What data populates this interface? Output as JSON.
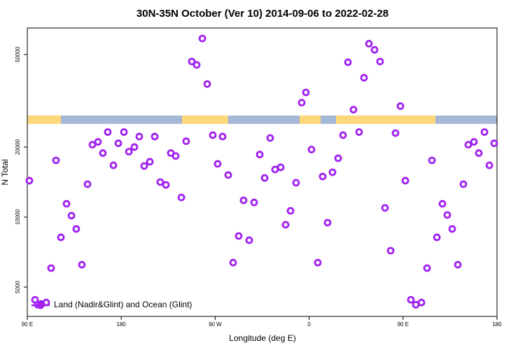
{
  "chart_data": {
    "type": "scatter",
    "title": "30N-35N October (Ver 10)   2014-09-06 to 2022-02-28",
    "x_label": "Longitude (deg E)",
    "y_label": "N Total",
    "log_y": true,
    "legend_position": "bottom-left",
    "xlim": [
      90,
      540
    ],
    "ylim": [
      3740,
      65000
    ],
    "xticks": [
      {
        "value": 90,
        "label": "90 E"
      },
      180,
      {
        "value": 270,
        "label": "90 W"
      },
      {
        "value": 360,
        "label": "0"
      },
      {
        "value": 450,
        "label": "90 E"
      },
      {
        "value": 540,
        "label": "180"
      }
    ],
    "yticks": [
      5000,
      10000,
      20000,
      50000
    ],
    "series": [
      {
        "name": "Land (Nadir&Glint) and Ocean (Glint)",
        "color": "#a020f0",
        "x": [
          92.0,
          97.4,
          100.1,
          103.4,
          108.1,
          112.8,
          117.5,
          122.2,
          127.6,
          132.3,
          136.9,
          142.3,
          147.7,
          152.4,
          157.7,
          162.4,
          167.1,
          172.5,
          177.2,
          182.6,
          187.3,
          192.6,
          197.3,
          202.0,
          207.4,
          212.1,
          217.4,
          222.8,
          227.5,
          232.2,
          237.6,
          242.2,
          247.6,
          252.3,
          257.7,
          262.4,
          267.7,
          272.4,
          277.1,
          282.5,
          287.2,
          292.5,
          297.2,
          302.6,
          307.3,
          312.7,
          317.4,
          322.7,
          327.4,
          332.8,
          337.5,
          342.2,
          347.5,
          352.9,
          356.9,
          362.3,
          368.3,
          373.0,
          377.7,
          382.4,
          387.8,
          392.5,
          397.2,
          402.5,
          407.9,
          412.6,
          417.3,
          422.7,
          428.0,
          432.7,
          438.1,
          442.8,
          447.5,
          452.2,
          457.5,
          462.2,
          467.6,
          473.0,
          477.7,
          482.4,
          487.7,
          492.4,
          497.1,
          502.5,
          507.8,
          512.5,
          517.9,
          522.6,
          528.0,
          532.7,
          537.3
        ],
        "values": [
          14340,
          4410,
          4200,
          4230,
          4290,
          6030,
          17530,
          8180,
          11410,
          10140,
          8890,
          6240,
          13850,
          20470,
          21050,
          18840,
          23200,
          16690,
          20760,
          23200,
          19110,
          20000,
          22190,
          16580,
          17290,
          22190,
          14140,
          13750,
          18840,
          18300,
          12140,
          21190,
          46650,
          45100,
          58590,
          37320,
          22500,
          16940,
          22190,
          15160,
          6370,
          8290,
          11800,
          7950,
          11560,
          18580,
          14730,
          21880,
          16020,
          16360,
          9270,
          10640,
          14050,
          31040,
          34350,
          19510,
          6370,
          14940,
          9460,
          15580,
          17900,
          22500,
          46300,
          28960,
          23200,
          39720,
          55660,
          52370,
          46650,
          10950,
          7170,
          22970,
          29990,
          14340,
          4410,
          4200,
          4290,
          6030,
          17530,
          8180,
          11410,
          10210,
          8890,
          6240,
          13850,
          20470,
          21050,
          18840,
          23200,
          16690,
          20760
        ]
      }
    ]
  }
}
